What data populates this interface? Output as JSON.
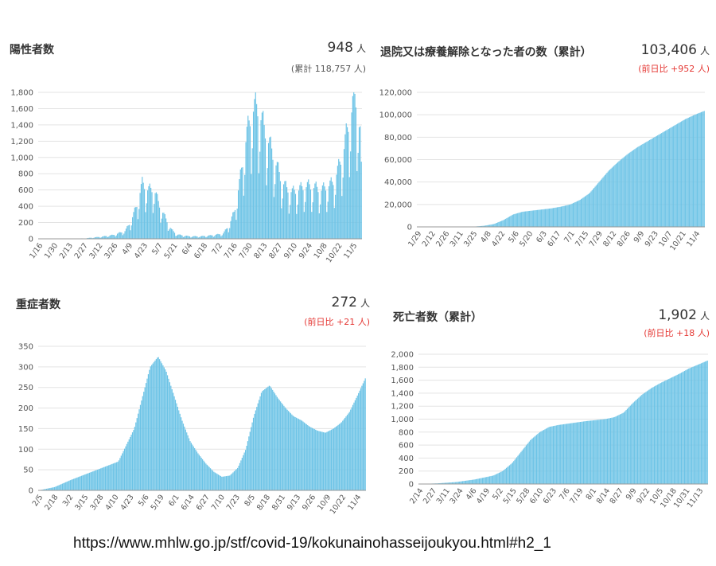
{
  "panels": {
    "positive": {
      "title": "陽性者数",
      "value": "948",
      "unit": "人",
      "note": "(累計 118,757 人)"
    },
    "recovered": {
      "title": "退院又は療養解除となった者の数（累計）",
      "value": "103,406",
      "unit": "人",
      "note": "(前日比 +952 人)"
    },
    "severe": {
      "title": "重症者数",
      "value": "272",
      "unit": "人",
      "note": "(前日比 +21 人)"
    },
    "deaths": {
      "title": "死亡者数（累計）",
      "value": "1,902",
      "unit": "人",
      "note": "(前日比 +18 人)"
    }
  },
  "source_url": "https://www.mhlw.go.jp/stf/covid-19/kokunainohasseijoukyou.html#h2_1",
  "colors": {
    "bar": "#6cc3e6",
    "grid": "#e3e3e3",
    "axis": "#999999",
    "red": "#e53935"
  },
  "chart_data": [
    {
      "id": "positive",
      "type": "bar",
      "ylim": [
        0,
        1800
      ],
      "yticks": [
        0,
        200,
        400,
        600,
        800,
        1000,
        1200,
        1400,
        1600,
        1800
      ],
      "ytick_labels": [
        "0",
        "200",
        "400",
        "600",
        "800",
        "1,000",
        "1,200",
        "1,400",
        "1,600",
        "1,800"
      ],
      "xtick_labels": [
        "1/16",
        "1/30",
        "2/13",
        "2/27",
        "3/12",
        "3/26",
        "4/9",
        "4/23",
        "5/7",
        "5/21",
        "6/4",
        "6/18",
        "7/2",
        "7/16",
        "7/30",
        "8/13",
        "8/27",
        "9/10",
        "9/24",
        "10/8",
        "10/22",
        "11/5"
      ],
      "curve": [
        [
          0,
          0
        ],
        [
          4,
          2
        ],
        [
          8,
          5
        ],
        [
          11,
          25
        ],
        [
          13,
          45
        ],
        [
          15,
          90
        ],
        [
          16,
          200
        ],
        [
          17,
          380
        ],
        [
          18,
          640
        ],
        [
          19,
          560
        ],
        [
          20,
          580
        ],
        [
          21,
          380
        ],
        [
          22,
          240
        ],
        [
          23,
          110
        ],
        [
          24,
          50
        ],
        [
          26,
          30
        ],
        [
          28,
          28
        ],
        [
          30,
          40
        ],
        [
          32,
          60
        ],
        [
          33,
          150
        ],
        [
          34,
          320
        ],
        [
          35,
          700
        ],
        [
          36,
          1150
        ],
        [
          37,
          1480
        ],
        [
          38,
          1510
        ],
        [
          39,
          1300
        ],
        [
          40,
          1100
        ],
        [
          41,
          900
        ],
        [
          42,
          700
        ],
        [
          43,
          580
        ],
        [
          44,
          540
        ],
        [
          45,
          560
        ],
        [
          46,
          600
        ],
        [
          47,
          610
        ],
        [
          48,
          590
        ],
        [
          49,
          560
        ],
        [
          50,
          600
        ],
        [
          51,
          640
        ],
        [
          52,
          800
        ],
        [
          53,
          1050
        ],
        [
          54,
          1400
        ],
        [
          55,
          1650
        ],
        [
          56,
          1100
        ]
      ],
      "curve_x_range": [
        0,
        56
      ],
      "last_value": 948
    },
    {
      "id": "recovered",
      "type": "bar",
      "ylim": [
        0,
        120000
      ],
      "yticks": [
        0,
        20000,
        40000,
        60000,
        80000,
        100000,
        120000
      ],
      "ytick_labels": [
        "0",
        "20,000",
        "40,000",
        "60,000",
        "80,000",
        "100,000",
        "120,000"
      ],
      "xtick_labels": [
        "1/29",
        "2/12",
        "2/26",
        "3/11",
        "3/25",
        "4/8",
        "4/22",
        "5/6",
        "5/20",
        "6/3",
        "6/17",
        "7/1",
        "7/15",
        "7/29",
        "8/12",
        "8/26",
        "9/9",
        "9/23",
        "10/7",
        "10/21",
        "11/4"
      ],
      "curve": [
        [
          0,
          0
        ],
        [
          4,
          30
        ],
        [
          6,
          300
        ],
        [
          7,
          1000
        ],
        [
          8,
          2500
        ],
        [
          9,
          6000
        ],
        [
          10,
          11000
        ],
        [
          11,
          13500
        ],
        [
          12,
          14500
        ],
        [
          13,
          15500
        ],
        [
          14,
          16500
        ],
        [
          15,
          18000
        ],
        [
          16,
          20000
        ],
        [
          17,
          24000
        ],
        [
          18,
          30000
        ],
        [
          19,
          40000
        ],
        [
          20,
          50000
        ],
        [
          21,
          58000
        ],
        [
          22,
          65000
        ],
        [
          23,
          71000
        ],
        [
          24,
          76000
        ],
        [
          25,
          81000
        ],
        [
          26,
          86000
        ],
        [
          27,
          91000
        ],
        [
          28,
          96000
        ],
        [
          29,
          100000
        ],
        [
          30,
          103406
        ]
      ],
      "curve_x_range": [
        0,
        30
      ]
    },
    {
      "id": "severe",
      "type": "bar",
      "ylim": [
        0,
        350
      ],
      "yticks": [
        0,
        50,
        100,
        150,
        200,
        250,
        300,
        350
      ],
      "ytick_labels": [
        "0",
        "50",
        "100",
        "150",
        "200",
        "250",
        "300",
        "350"
      ],
      "xtick_labels": [
        "2/5",
        "2/18",
        "3/2",
        "3/15",
        "3/28",
        "4/10",
        "4/23",
        "5/6",
        "5/19",
        "6/1",
        "6/14",
        "6/27",
        "7/10",
        "7/23",
        "8/5",
        "8/18",
        "8/31",
        "9/13",
        "9/26",
        "10/9",
        "10/22",
        "11/4"
      ],
      "curve": [
        [
          0,
          0
        ],
        [
          2,
          8
        ],
        [
          4,
          25
        ],
        [
          6,
          40
        ],
        [
          8,
          55
        ],
        [
          10,
          70
        ],
        [
          12,
          150
        ],
        [
          14,
          300
        ],
        [
          15,
          325
        ],
        [
          16,
          290
        ],
        [
          17,
          230
        ],
        [
          18,
          170
        ],
        [
          19,
          120
        ],
        [
          20,
          90
        ],
        [
          21,
          65
        ],
        [
          22,
          45
        ],
        [
          23,
          33
        ],
        [
          24,
          36
        ],
        [
          25,
          55
        ],
        [
          26,
          100
        ],
        [
          27,
          180
        ],
        [
          28,
          240
        ],
        [
          29,
          255
        ],
        [
          30,
          225
        ],
        [
          31,
          200
        ],
        [
          32,
          180
        ],
        [
          33,
          170
        ],
        [
          34,
          155
        ],
        [
          35,
          145
        ],
        [
          36,
          140
        ],
        [
          37,
          150
        ],
        [
          38,
          165
        ],
        [
          39,
          190
        ],
        [
          40,
          230
        ],
        [
          41,
          272
        ]
      ],
      "curve_x_range": [
        0,
        41
      ]
    },
    {
      "id": "deaths",
      "type": "bar",
      "ylim": [
        0,
        2000
      ],
      "yticks": [
        0,
        200,
        400,
        600,
        800,
        1000,
        1200,
        1400,
        1600,
        1800,
        2000
      ],
      "ytick_labels": [
        "0",
        "200",
        "400",
        "600",
        "800",
        "1,000",
        "1,200",
        "1,400",
        "1,600",
        "1,800",
        "2,000"
      ],
      "xtick_labels": [
        "2/14",
        "2/27",
        "3/11",
        "3/24",
        "4/6",
        "4/19",
        "5/2",
        "5/15",
        "5/28",
        "6/10",
        "6/23",
        "7/6",
        "7/19",
        "8/1",
        "8/14",
        "8/27",
        "9/9",
        "9/22",
        "10/5",
        "10/18",
        "10/31",
        "11/13"
      ],
      "curve": [
        [
          0,
          0
        ],
        [
          2,
          10
        ],
        [
          4,
          30
        ],
        [
          6,
          70
        ],
        [
          8,
          130
        ],
        [
          9,
          200
        ],
        [
          10,
          320
        ],
        [
          11,
          500
        ],
        [
          12,
          680
        ],
        [
          13,
          800
        ],
        [
          14,
          880
        ],
        [
          15,
          910
        ],
        [
          16,
          930
        ],
        [
          17,
          950
        ],
        [
          18,
          970
        ],
        [
          19,
          985
        ],
        [
          20,
          1000
        ],
        [
          21,
          1030
        ],
        [
          22,
          1100
        ],
        [
          23,
          1250
        ],
        [
          24,
          1380
        ],
        [
          25,
          1480
        ],
        [
          26,
          1560
        ],
        [
          27,
          1630
        ],
        [
          28,
          1700
        ],
        [
          29,
          1780
        ],
        [
          30,
          1840
        ],
        [
          31,
          1902
        ]
      ],
      "curve_x_range": [
        0,
        31
      ]
    }
  ]
}
